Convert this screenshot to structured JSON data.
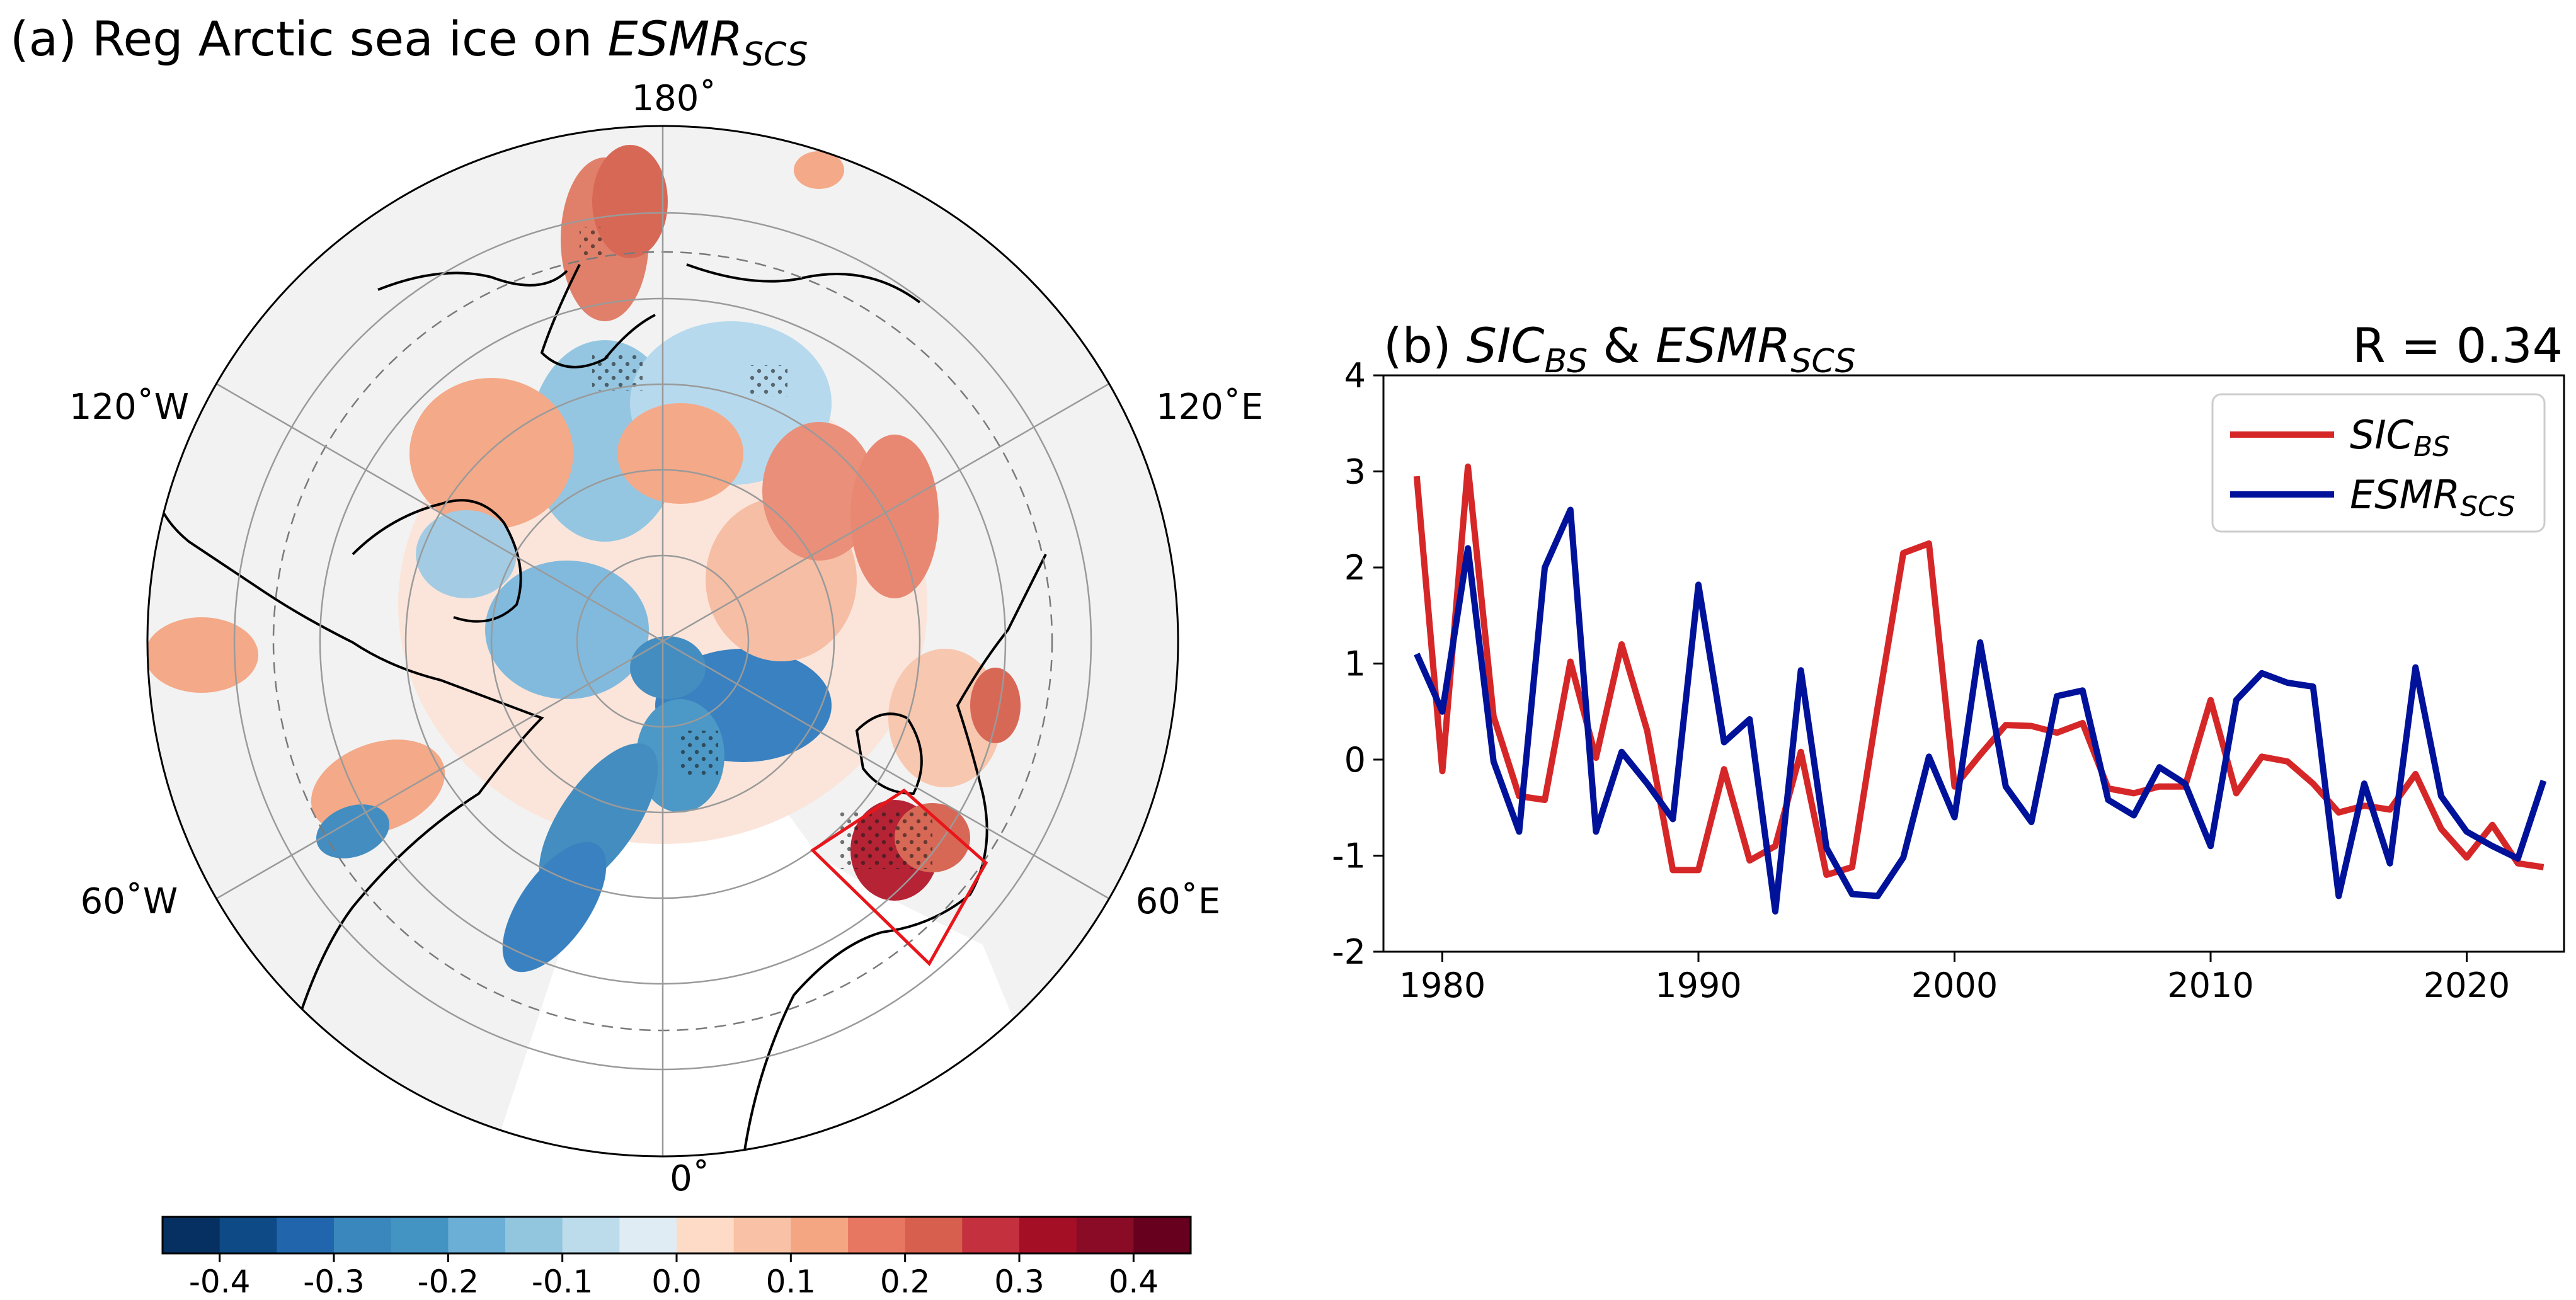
{
  "panel_a": {
    "label": "(a)",
    "title_main": "Reg Arctic sea ice on ",
    "title_var": "ESMR",
    "title_sub": "SCS",
    "lon_labels": {
      "top": "180˚",
      "right_upper": "120˚E",
      "left_upper": "120˚W",
      "left_lower": "60˚W",
      "right_lower": "60˚E",
      "bottom": "0˚"
    },
    "colorbar_colors": [
      "#053061",
      "#0d4a86",
      "#2166ac",
      "#3a87bd",
      "#4393c3",
      "#6baed6",
      "#92c5de",
      "#bcdcec",
      "#e0ecf4",
      "#fddbc7",
      "#f9c2a6",
      "#f4a582",
      "#e87762",
      "#d6604d",
      "#c4303d",
      "#a50f26",
      "#8a0b26",
      "#67001f"
    ],
    "colorbar_ticks": [
      "-0.4",
      "-0.3",
      "-0.2",
      "-0.1",
      "0.0",
      "0.1",
      "0.2",
      "0.3",
      "0.4"
    ]
  },
  "chart_data": {
    "type": "line",
    "title_label": "(b)",
    "title_var1": "SIC",
    "title_sub1": "BS",
    "title_amp": " & ",
    "title_var2": "ESMR",
    "title_sub2": "SCS",
    "r_label": "R = 0.34",
    "x": [
      1979,
      1980,
      1981,
      1982,
      1983,
      1984,
      1985,
      1986,
      1987,
      1988,
      1989,
      1990,
      1991,
      1992,
      1993,
      1994,
      1995,
      1996,
      1997,
      1998,
      1999,
      2000,
      2001,
      2002,
      2003,
      2004,
      2005,
      2006,
      2007,
      2008,
      2009,
      2010,
      2011,
      2012,
      2013,
      2014,
      2015,
      2016,
      2017,
      2018,
      2019,
      2020,
      2021,
      2022,
      2023
    ],
    "xlim": [
      1977.7,
      2023.8
    ],
    "ylim": [
      -2,
      4
    ],
    "xticks": [
      1980,
      1990,
      2000,
      2010,
      2020
    ],
    "yticks": [
      -2,
      -1,
      0,
      1,
      2,
      3,
      4
    ],
    "series": [
      {
        "name": "SIC",
        "name_sub": "BS",
        "color": "#d62728",
        "values": [
          2.95,
          -0.12,
          3.05,
          0.45,
          -0.38,
          -0.42,
          1.02,
          0.02,
          1.2,
          0.3,
          -1.15,
          -1.15,
          -0.1,
          -1.05,
          -0.9,
          0.08,
          -1.2,
          -1.12,
          0.55,
          2.15,
          2.25,
          -0.28,
          0.05,
          0.36,
          0.35,
          0.28,
          0.38,
          -0.3,
          -0.35,
          -0.28,
          -0.28,
          0.62,
          -0.35,
          0.03,
          -0.02,
          -0.25,
          -0.55,
          -0.48,
          -0.52,
          -0.15,
          -0.72,
          -1.02,
          -0.68,
          -1.08,
          -1.12
        ]
      },
      {
        "name": "ESMR",
        "name_sub": "SCS",
        "color": "#00129a",
        "values": [
          1.1,
          0.5,
          2.2,
          -0.02,
          -0.75,
          2.0,
          2.6,
          -0.75,
          0.08,
          -0.25,
          -0.62,
          1.82,
          0.18,
          0.42,
          -1.58,
          0.93,
          -0.92,
          -1.4,
          -1.42,
          -1.02,
          0.03,
          -0.6,
          1.22,
          -0.28,
          -0.65,
          0.66,
          0.72,
          -0.42,
          -0.58,
          -0.08,
          -0.25,
          -0.9,
          0.62,
          0.9,
          0.8,
          0.76,
          -1.42,
          -0.25,
          -1.08,
          0.96,
          -0.38,
          -0.75,
          -0.9,
          -1.03,
          -0.22
        ]
      }
    ]
  }
}
